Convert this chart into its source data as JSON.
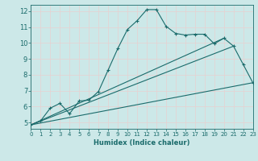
{
  "title": "",
  "xlabel": "Humidex (Indice chaleur)",
  "ylabel": "",
  "background_color": "#cce8e8",
  "grid_color": "#d4ecec",
  "line_color": "#1a6b6b",
  "xlim": [
    0,
    23
  ],
  "ylim": [
    4.6,
    12.4
  ],
  "xticks": [
    0,
    1,
    2,
    3,
    4,
    5,
    6,
    7,
    8,
    9,
    10,
    11,
    12,
    13,
    14,
    15,
    16,
    17,
    18,
    19,
    20,
    21,
    22,
    23
  ],
  "yticks": [
    5,
    6,
    7,
    8,
    9,
    10,
    11,
    12
  ],
  "series": [
    [
      0,
      4.85
    ],
    [
      1,
      5.1
    ],
    [
      2,
      5.9
    ],
    [
      3,
      6.2
    ],
    [
      4,
      5.55
    ],
    [
      5,
      6.35
    ],
    [
      6,
      6.4
    ],
    [
      7,
      6.95
    ],
    [
      8,
      8.3
    ],
    [
      9,
      9.65
    ],
    [
      10,
      10.85
    ],
    [
      11,
      11.4
    ],
    [
      12,
      12.1
    ],
    [
      13,
      12.1
    ],
    [
      14,
      11.05
    ],
    [
      15,
      10.6
    ],
    [
      16,
      10.5
    ],
    [
      17,
      10.55
    ],
    [
      18,
      10.55
    ],
    [
      19,
      9.95
    ],
    [
      20,
      10.3
    ],
    [
      21,
      9.8
    ],
    [
      22,
      8.65
    ],
    [
      23,
      7.5
    ]
  ],
  "line2": [
    [
      0,
      4.85
    ],
    [
      23,
      7.5
    ]
  ],
  "line3": [
    [
      0,
      4.85
    ],
    [
      20,
      10.3
    ]
  ],
  "line4": [
    [
      0,
      4.85
    ],
    [
      21,
      9.8
    ]
  ]
}
